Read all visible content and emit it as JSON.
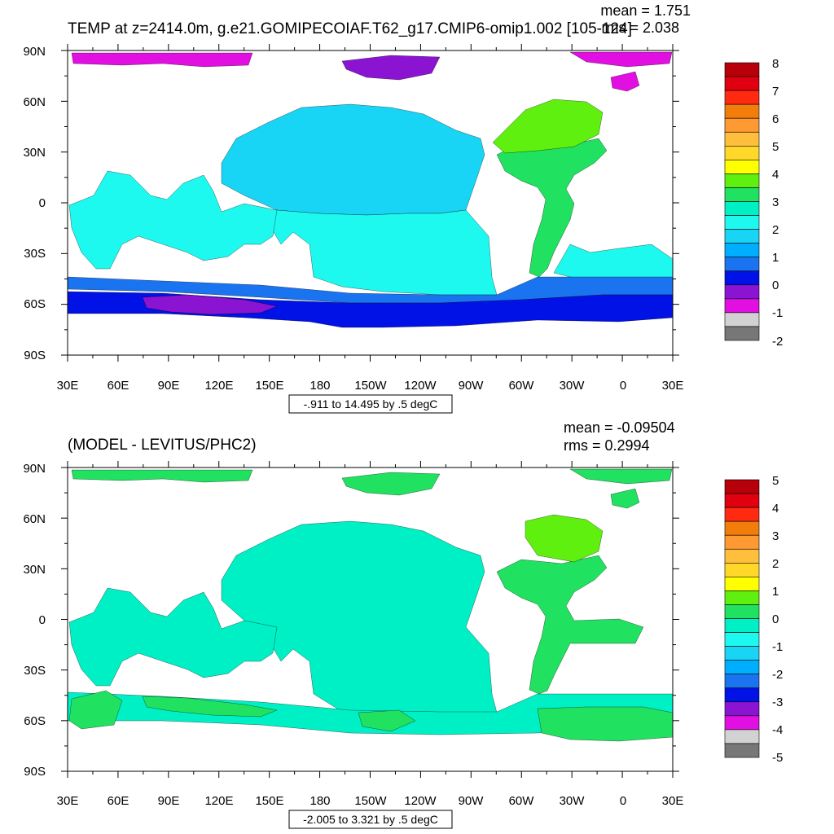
{
  "panels": [
    {
      "id": "top",
      "title": "TEMP at z=2414.0m, g.e21.GOMIPECOIAF.T62_g17.CMIP6-omip1.002 [105-124]",
      "stats": {
        "mean": "mean = 1.751",
        "rms": "rms = 2.038"
      },
      "range_label": "-.911 to 14.495 by .5 degC",
      "colorbar": {
        "labels": [
          "8",
          "7",
          "6",
          "5",
          "4",
          "3",
          "2",
          "1",
          "0",
          "-1",
          "-2"
        ]
      }
    },
    {
      "id": "bottom",
      "title": "(MODEL - LEVITUS/PHC2)",
      "stats": {
        "mean": "mean = -0.09504",
        "rms": "rms = 0.2994"
      },
      "range_label": "-2.005 to 3.321 by .5 degC",
      "colorbar": {
        "labels": [
          "5",
          "4",
          "3",
          "2",
          "1",
          "0",
          "-1",
          "-2",
          "-3",
          "-4",
          "-5"
        ]
      }
    }
  ],
  "axes": {
    "lat_labels": [
      "90N",
      "60N",
      "30N",
      "0",
      "30S",
      "60S",
      "90S"
    ],
    "lon_labels": [
      "30E",
      "60E",
      "90E",
      "120E",
      "150E",
      "180",
      "150W",
      "120W",
      "90W",
      "60W",
      "30W",
      "0",
      "30E"
    ]
  },
  "colorbar_colors": [
    "#b8000b",
    "#e1000f",
    "#ff2a10",
    "#f27d0a",
    "#ff9932",
    "#ffbf3c",
    "#ffd829",
    "#ffff00",
    "#5ff00f",
    "#20e160",
    "#00f0c6",
    "#1ef9f0",
    "#19d5f5",
    "#00aeff",
    "#1a74f0",
    "#0012e6",
    "#8b14d2",
    "#e10fe1",
    "#d2d2d2",
    "#777777"
  ],
  "field_colors": {
    "top": {
      "atlantic": "#20e160",
      "atlantic_north": "#5ff00f",
      "pacific_north": "#19d5f5",
      "pacific_south": "#1ef9f0",
      "indian": "#1ef9f0",
      "southern_1": "#1a74f0",
      "southern_2": "#0012e6",
      "southern_3": "#8b14d2",
      "arctic": "#e10fe1",
      "arctic_2": "#8b14d2"
    },
    "bottom": {
      "main": "#00f0c6",
      "atlantic": "#20e160",
      "atlantic_north": "#5ff00f",
      "southern": "#20e160",
      "arctic": "#20e160"
    }
  }
}
